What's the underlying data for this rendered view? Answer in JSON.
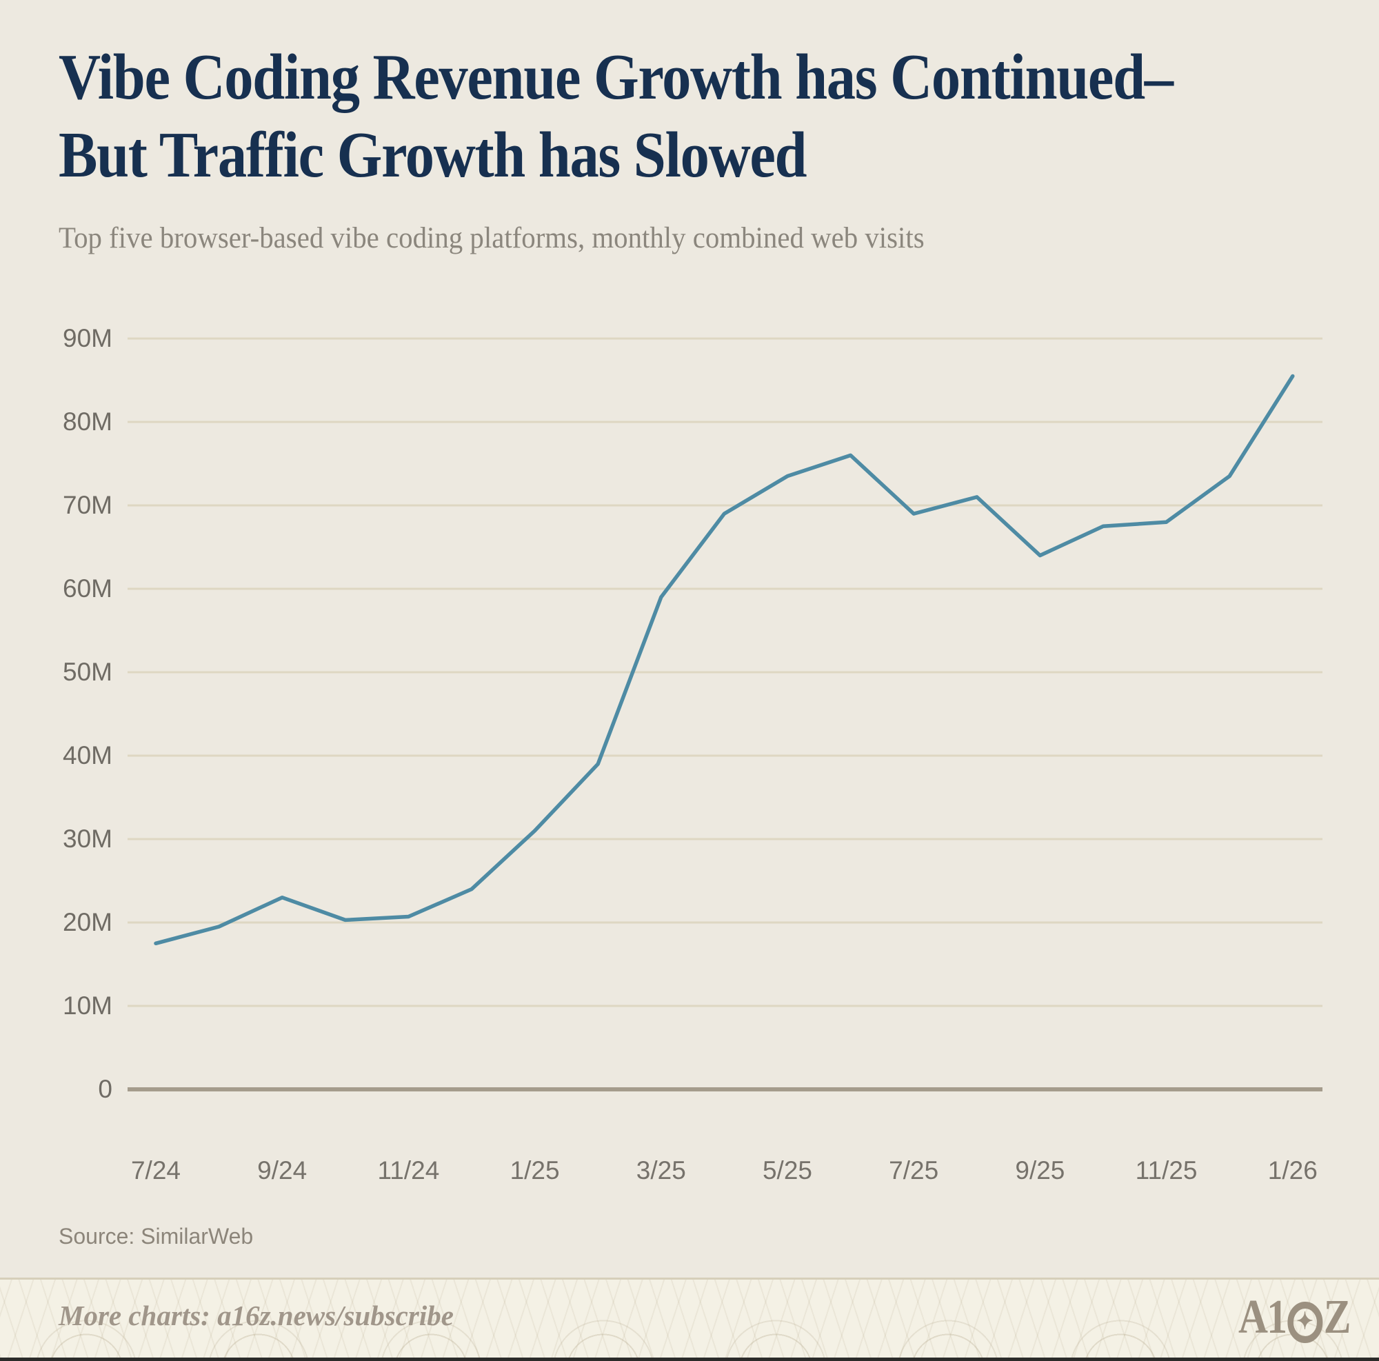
{
  "header": {
    "title_line1": "Vibe Coding Revenue Growth has Continued–",
    "title_line2": "But Traffic Growth has Slowed",
    "subtitle": "Top five browser-based vibe coding platforms, monthly combined web visits"
  },
  "chart_data": {
    "type": "line",
    "title": "Vibe Coding Revenue Growth has Continued–But Traffic Growth has Slowed",
    "subtitle": "Top five browser-based vibe coding platforms, monthly combined web visits",
    "x": [
      "7/24",
      "8/24",
      "9/24",
      "10/24",
      "11/24",
      "12/24",
      "1/25",
      "2/25",
      "3/25",
      "4/25",
      "5/25",
      "6/25",
      "7/25",
      "8/25",
      "9/25",
      "10/25",
      "11/25",
      "12/25",
      "1/26"
    ],
    "values_millions": [
      17.5,
      19.5,
      23,
      20.3,
      20.7,
      24,
      31,
      39,
      59,
      69,
      73.5,
      76,
      69,
      71,
      64,
      67.5,
      68,
      73.5,
      85.5
    ],
    "unit": "M",
    "ylabel": "monthly combined web visits",
    "xlabel": "",
    "ylim": [
      0,
      90
    ],
    "grid": "horizontal",
    "legend": "none",
    "y_ticks": [
      {
        "value": 90,
        "label": "90M"
      },
      {
        "value": 80,
        "label": "80M"
      },
      {
        "value": 70,
        "label": "70M"
      },
      {
        "value": 60,
        "label": "60M"
      },
      {
        "value": 50,
        "label": "50M"
      },
      {
        "value": 40,
        "label": "40M"
      },
      {
        "value": 30,
        "label": "30M"
      },
      {
        "value": 20,
        "label": "20M"
      },
      {
        "value": 10,
        "label": "10M"
      },
      {
        "value": 0,
        "label": "0"
      }
    ],
    "x_ticks": [
      {
        "month_index": 0,
        "label": "7/24"
      },
      {
        "month_index": 2,
        "label": "9/24"
      },
      {
        "month_index": 4,
        "label": "11/24"
      },
      {
        "month_index": 6,
        "label": "1/25"
      },
      {
        "month_index": 8,
        "label": "3/25"
      },
      {
        "month_index": 10,
        "label": "5/25"
      },
      {
        "month_index": 12,
        "label": "7/25"
      },
      {
        "month_index": 14,
        "label": "9/25"
      },
      {
        "month_index": 16,
        "label": "11/25"
      },
      {
        "month_index": 18,
        "label": "1/26"
      }
    ]
  },
  "colors": {
    "background": "#ede9e0",
    "line": "#4e8ba4",
    "gridline": "#ded7c2",
    "baseline": "#a59c8c",
    "title_navy": "#173050",
    "footer_band": "#f4f1e5",
    "logo_gray": "#9b9080"
  },
  "source": {
    "label": "Source: SimilarWeb"
  },
  "footer": {
    "more_charts": "More charts: a16z.news/subscribe",
    "logo_alt": "A16Z",
    "logo_prefix": "A1",
    "logo_suffix": "Z",
    "logo_star": "✦"
  }
}
